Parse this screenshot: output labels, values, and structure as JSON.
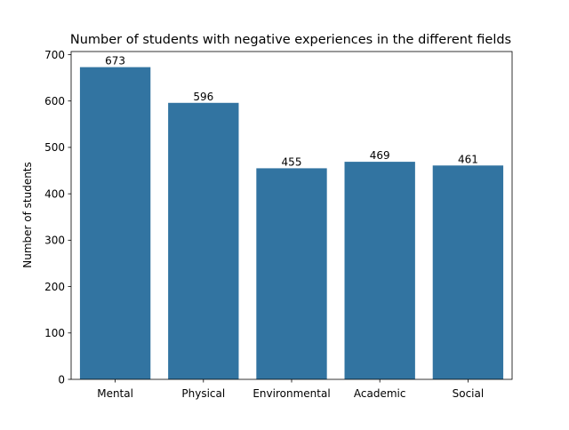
{
  "chart_data": {
    "type": "bar",
    "title": "Number of students with negative experiences in the different fields",
    "xlabel": "",
    "ylabel": "Number of students",
    "categories": [
      "Mental",
      "Physical",
      "Environmental",
      "Academic",
      "Social"
    ],
    "values": [
      673,
      596,
      455,
      469,
      461
    ],
    "data_labels": [
      "673",
      "596",
      "455",
      "469",
      "461"
    ],
    "ylim": [
      0,
      706.65
    ],
    "yticks": [
      0,
      100,
      200,
      300,
      400,
      500,
      600,
      700
    ],
    "ytick_labels": [
      "0",
      "100",
      "200",
      "300",
      "400",
      "500",
      "600",
      "700"
    ],
    "bar_color": "#3274a1",
    "grid": false,
    "legend": "none"
  }
}
